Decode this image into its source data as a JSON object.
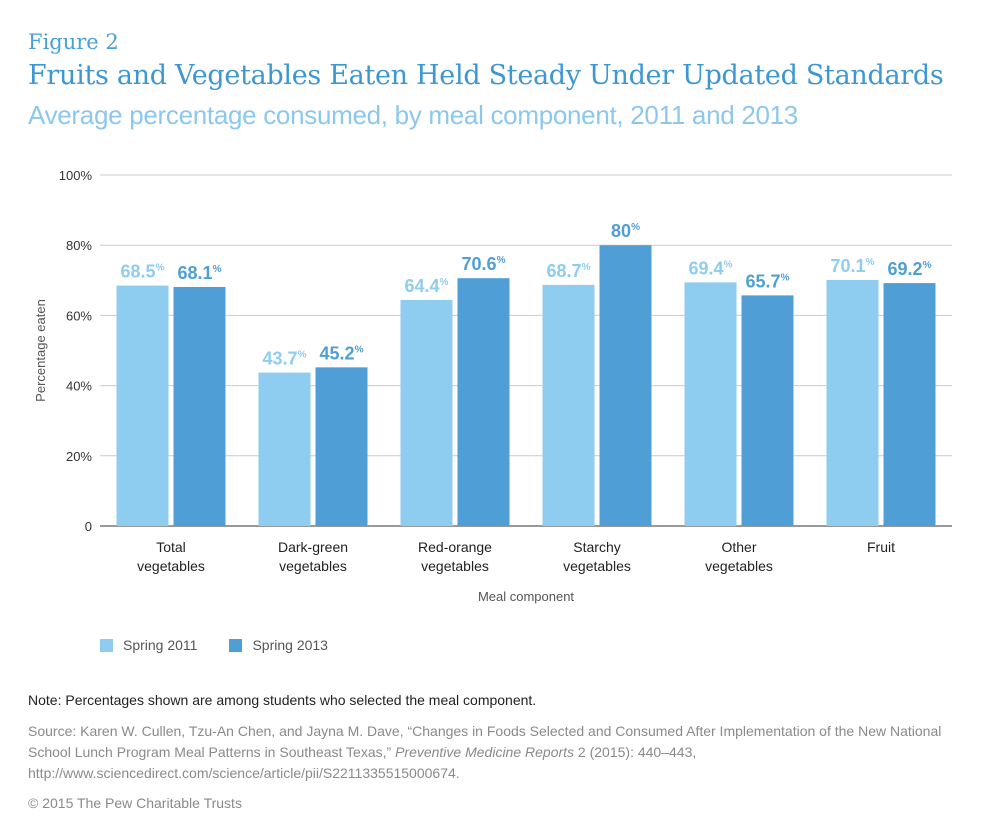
{
  "figure_label": "Figure 2",
  "title": "Fruits and Vegetables Eaten Held Steady Under Updated Standards",
  "subtitle": "Average percentage consumed, by meal component, 2011 and 2013",
  "colors": {
    "spring2011": "#8ecdf0",
    "spring2013": "#4f9fd6",
    "grid": "#cccccc",
    "axis": "#333333"
  },
  "chart_data": {
    "type": "bar",
    "xlabel": "Meal component",
    "ylabel": "Percentage eaten",
    "ylim": [
      0,
      100
    ],
    "yticks": [
      0,
      20,
      40,
      60,
      80,
      100
    ],
    "ytick_labels": [
      "0",
      "20%",
      "40%",
      "60%",
      "80%",
      "100%"
    ],
    "grid": true,
    "legend_position": "bottom-left",
    "categories": [
      [
        "Total",
        "vegetables"
      ],
      [
        "Dark-green",
        "vegetables"
      ],
      [
        "Red-orange",
        "vegetables"
      ],
      [
        "Starchy",
        "vegetables"
      ],
      [
        "Other",
        "vegetables"
      ],
      [
        "Fruit"
      ]
    ],
    "series": [
      {
        "name": "Spring 2011",
        "values": [
          68.5,
          43.7,
          64.4,
          68.7,
          69.4,
          70.1
        ],
        "labels": [
          "68.5",
          "43.7",
          "64.4",
          "68.7",
          "69.4",
          "70.1"
        ]
      },
      {
        "name": "Spring 2013",
        "values": [
          68.1,
          45.2,
          70.6,
          80,
          65.7,
          69.2
        ],
        "labels": [
          "68.1",
          "45.2",
          "70.6",
          "80",
          "65.7",
          "69.2"
        ]
      }
    ],
    "value_suffix": "%"
  },
  "legend": {
    "items": [
      "Spring 2011",
      "Spring 2013"
    ]
  },
  "note": "Note: Percentages shown are among students who selected the meal component.",
  "source": {
    "prefix": "Source: Karen W. Cullen, Tzu-An Chen, and Jayna M. Dave, “Changes in Foods Selected and Consumed After Implementation of the New National School Lunch Program Meal Patterns in Southeast Texas,” ",
    "journal": "Preventive Medicine Reports",
    "suffix": " 2 (2015): 440–443, http://www.sciencedirect.com/science/article/pii/S2211335515000674."
  },
  "copyright": "© 2015 The Pew Charitable Trusts"
}
